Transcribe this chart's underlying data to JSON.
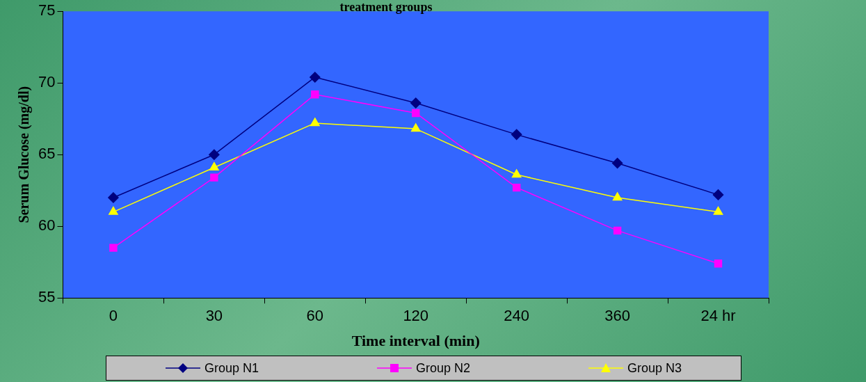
{
  "chart_data": {
    "type": "line",
    "title": "treatment groups",
    "xlabel": "Time interval (min)",
    "ylabel": "Serum Glucose (mg/dl)",
    "categories": [
      "0",
      "30",
      "60",
      "120",
      "240",
      "360",
      "24 hr"
    ],
    "series": [
      {
        "name": "Group N1",
        "color": "#000080",
        "marker": "diamond",
        "values": [
          62.0,
          65.0,
          70.4,
          68.6,
          66.4,
          64.4,
          62.2
        ]
      },
      {
        "name": "Group N2",
        "color": "#ff00ff",
        "marker": "square",
        "values": [
          58.5,
          63.4,
          69.2,
          67.9,
          62.7,
          59.7,
          57.4
        ]
      },
      {
        "name": "Group N3",
        "color": "#ffff00",
        "marker": "triangle",
        "values": [
          61.0,
          64.1,
          67.2,
          66.8,
          63.6,
          62.0,
          61.0
        ]
      }
    ],
    "ylim": [
      55,
      75
    ],
    "yticks": [
      55,
      60,
      65,
      70,
      75
    ],
    "grid": false,
    "legend": "bottom"
  }
}
